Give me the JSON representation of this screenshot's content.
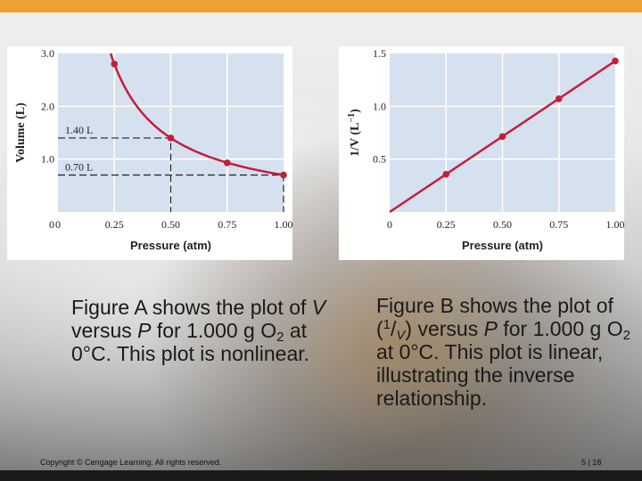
{
  "chart_data": [
    {
      "type": "line",
      "xlabel": "Pressure (atm)",
      "ylabel": "Volume (L)",
      "x": [
        0.25,
        0.5,
        0.75,
        1.0
      ],
      "series": [
        {
          "values": [
            2.8,
            1.4,
            0.93,
            0.7
          ]
        }
      ],
      "xlim": [
        0,
        1.0
      ],
      "ylim": [
        0,
        3.0
      ],
      "xticks": [
        "0",
        "0.25",
        "0.50",
        "0.75",
        "1.00"
      ],
      "yticks": [
        "0",
        "1.0",
        "2.0",
        "3.0"
      ],
      "annotations": [
        "1.40 L",
        "0.70 L"
      ],
      "grid": true,
      "color": "#c41e3a"
    },
    {
      "type": "line",
      "xlabel": "Pressure (atm)",
      "ylabel_main": "1/V (L",
      "ylabel_sup": "−1",
      "ylabel_close": ")",
      "x": [
        0,
        0.25,
        0.5,
        0.75,
        1.0
      ],
      "series": [
        {
          "values": [
            0,
            0.357,
            0.714,
            1.071,
            1.429
          ]
        }
      ],
      "xlim": [
        0,
        1.0
      ],
      "ylim": [
        0,
        1.5
      ],
      "xticks": [
        "0",
        "0.25",
        "0.50",
        "0.75",
        "1.00"
      ],
      "yticks": [
        "0.5",
        "1.0",
        "1.5"
      ],
      "grid": true,
      "color": "#c41e3a"
    }
  ],
  "captions": {
    "a": {
      "t1": "Figure A shows the plot of ",
      "v": "V",
      "t2": " versus ",
      "p": "P",
      "t3": " for 1.000 g O",
      "sub": "2",
      "t4": " at 0°C. This plot is nonlinear."
    },
    "b": {
      "t1": "Figure B shows the plot of (",
      "sup1": "1",
      "slash": "/",
      "subv": "V",
      "t2": ") versus ",
      "p": "P",
      "t3": " for 1.000 g O",
      "sub": "2",
      "t4": " at 0°C. This plot is linear, illustrating the inverse relationship."
    }
  },
  "footer": {
    "copyright": "Copyright © Cengage Learning. All rights reserved.",
    "page": "5 | 18"
  },
  "colors": {
    "accent_bar": "#f0a030",
    "plot_bg": "#d6e1f0",
    "curve": "#c41e3a"
  }
}
